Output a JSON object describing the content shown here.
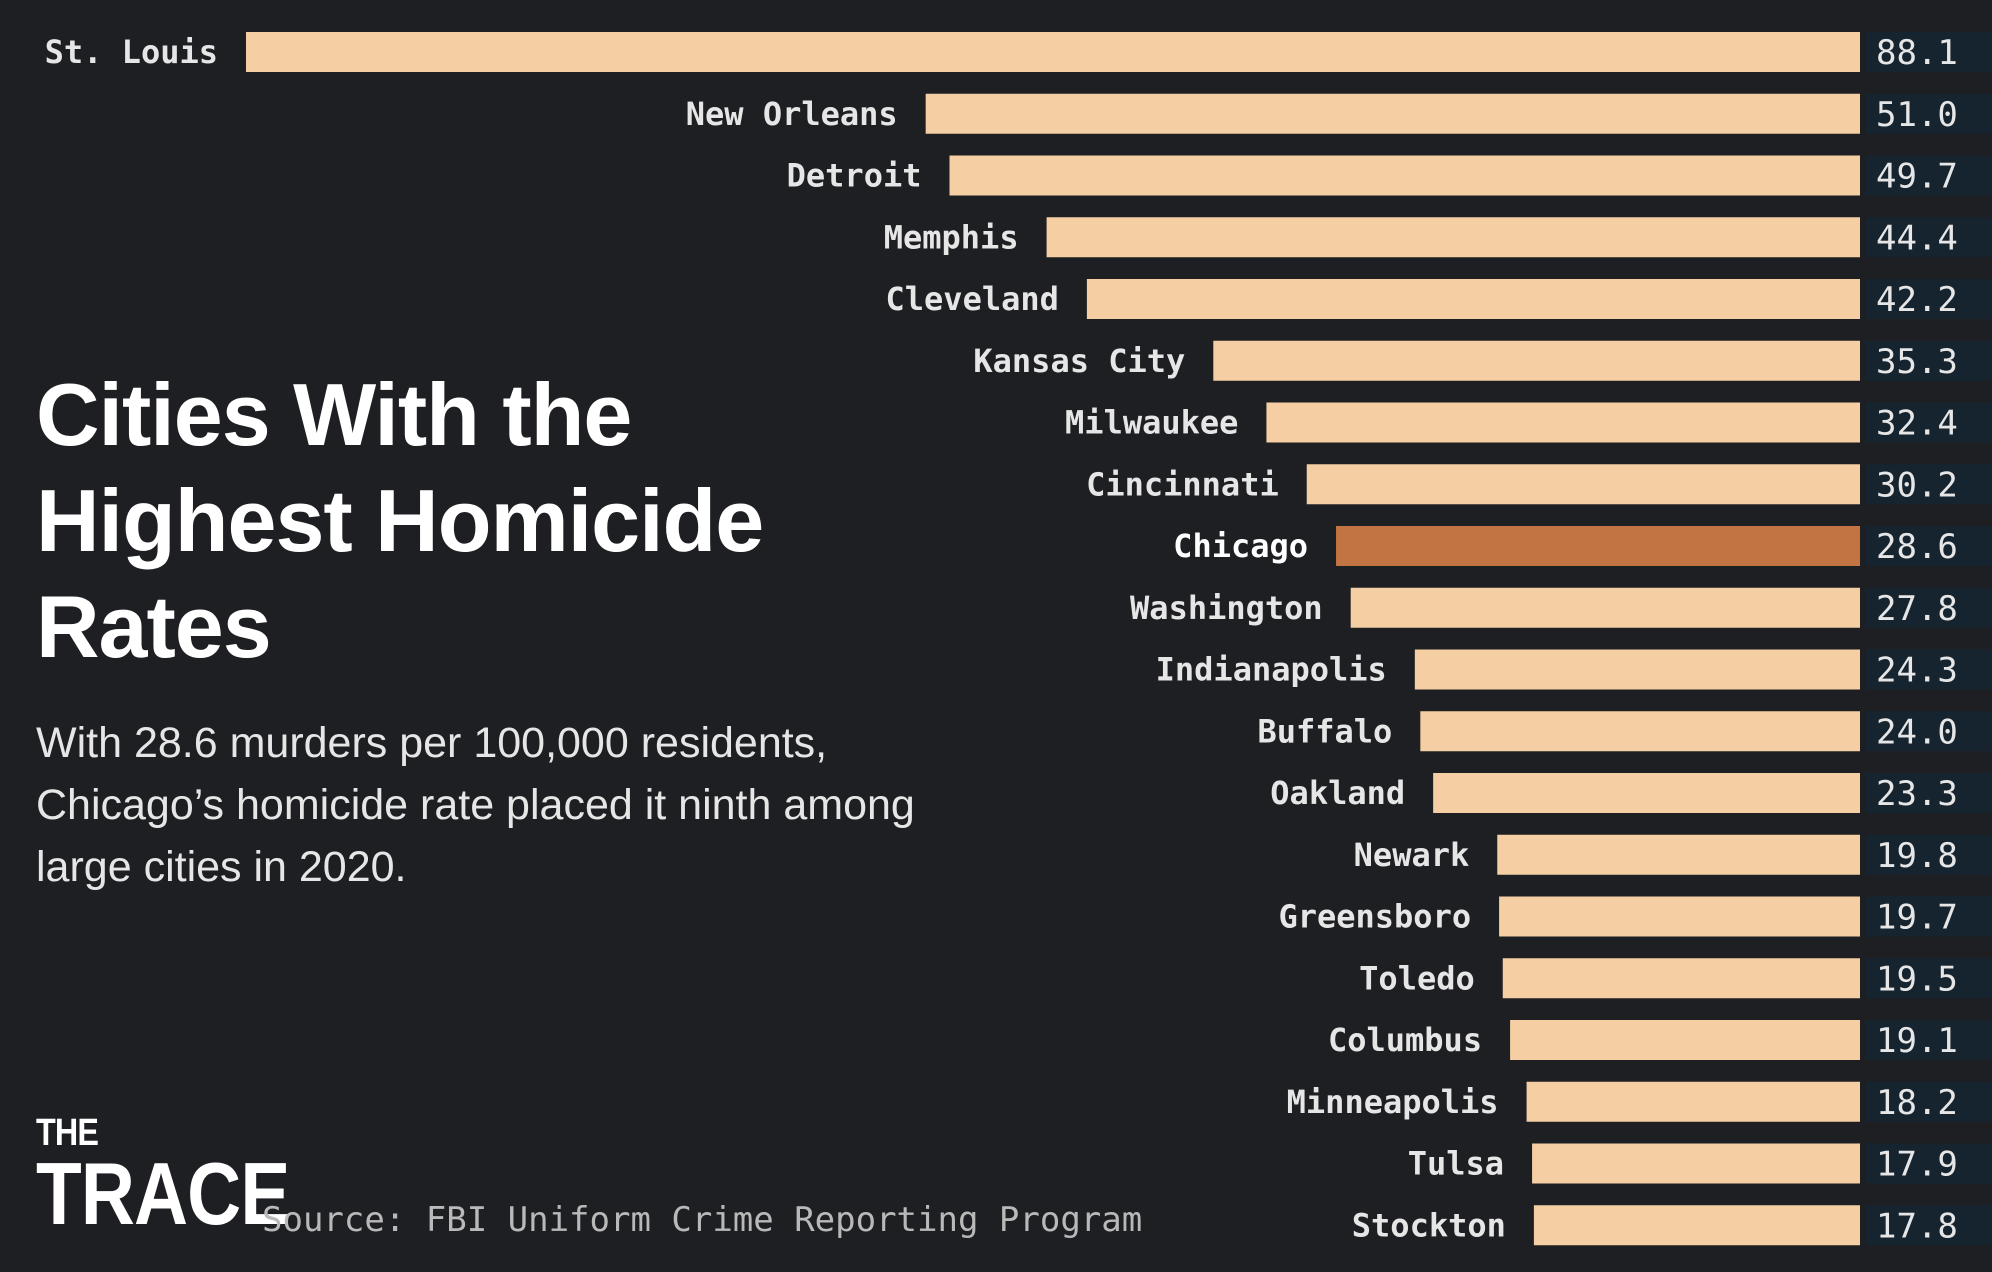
{
  "title": "Cities With the Highest Homicide Rates",
  "subtitle": "With 28.6 murders per 100,000 residents, Chicago’s homicide rate placed it ninth among large cities in 2020.",
  "source": "Source: FBI Uniform Crime Reporting Program",
  "logo": {
    "line1": "THE",
    "line2": "TRACE"
  },
  "colors": {
    "background": "#1e1f23",
    "bar": "#f5cfa3",
    "highlight_bar": "#c27542",
    "value_box": "#162430",
    "label": "#e6e6e6",
    "highlight_label": "#ffffff"
  },
  "chart_data": {
    "type": "bar",
    "orientation": "horizontal",
    "highlight": "Chicago",
    "xlim": [
      0,
      88.1
    ],
    "categories": [
      "St. Louis",
      "New Orleans",
      "Detroit",
      "Memphis",
      "Cleveland",
      "Kansas City",
      "Milwaukee",
      "Cincinnati",
      "Chicago",
      "Washington",
      "Indianapolis",
      "Buffalo",
      "Oakland",
      "Newark",
      "Greensboro",
      "Toledo",
      "Columbus",
      "Minneapolis",
      "Tulsa",
      "Stockton"
    ],
    "values": [
      88.1,
      51.0,
      49.7,
      44.4,
      42.2,
      35.3,
      32.4,
      30.2,
      28.6,
      27.8,
      24.3,
      24.0,
      23.3,
      19.8,
      19.7,
      19.5,
      19.1,
      18.2,
      17.9,
      17.8
    ],
    "value_labels": [
      "88.1",
      "51.0",
      "49.7",
      "44.4",
      "42.2",
      "35.3",
      "32.4",
      "30.2",
      "28.6",
      "27.8",
      "24.3",
      "24.0",
      "23.3",
      "19.8",
      "19.7",
      "19.5",
      "19.1",
      "18.2",
      "17.9",
      "17.8"
    ]
  }
}
